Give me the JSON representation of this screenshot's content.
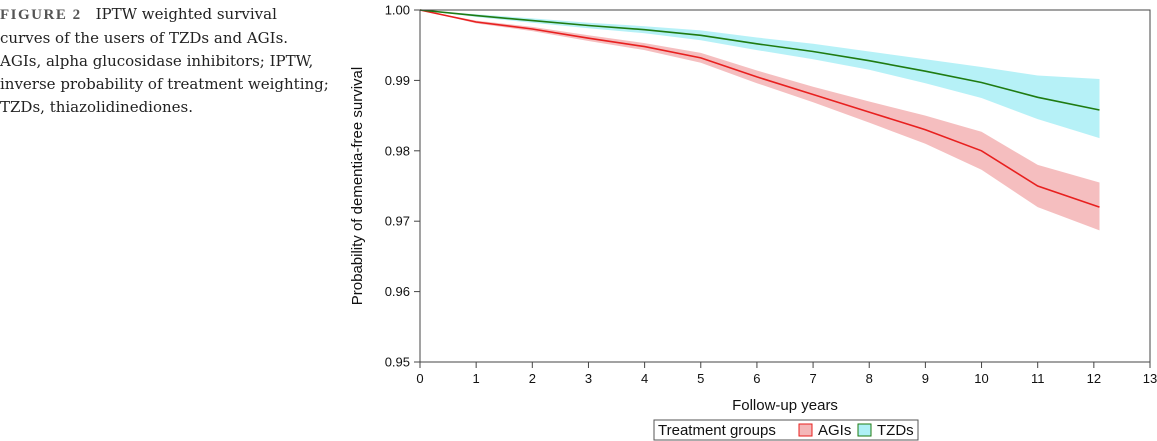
{
  "caption": {
    "label": "FIGURE 2",
    "text": "IPTW weighted survival curves of the users of TZDs and AGIs. AGIs, alpha glucosidase inhibitors; IPTW, inverse probability of treatment weighting; TZDs, thiazolidinediones."
  },
  "colors": {
    "agis_line": "#e8201f",
    "agis_band": "#f4b7b8",
    "tzds_line": "#1f7b12",
    "tzds_band": "#aef0f6"
  },
  "chart_data": {
    "type": "line",
    "xlabel": "Follow-up years",
    "ylabel": "Probability of dementia-free survival",
    "xlim": [
      0,
      13
    ],
    "ylim": [
      0.95,
      1.0
    ],
    "xticks": [
      0,
      1,
      2,
      3,
      4,
      5,
      6,
      7,
      8,
      9,
      10,
      11,
      12,
      13
    ],
    "yticks": [
      0.95,
      0.96,
      0.97,
      0.98,
      0.99,
      1.0
    ],
    "ytick_labels": [
      "0.95",
      "0.96",
      "0.97",
      "0.98",
      "0.99",
      "1.00"
    ],
    "legend": {
      "title": "Treatment groups",
      "placement": "bottom",
      "entries": [
        "AGIs",
        "TZDs"
      ]
    },
    "series": [
      {
        "name": "AGIs",
        "x": [
          0,
          1,
          2,
          3,
          4,
          5,
          6,
          7,
          8,
          9,
          10,
          11,
          12.1
        ],
        "values": [
          1.0,
          0.9983,
          0.9973,
          0.996,
          0.9948,
          0.9932,
          0.9905,
          0.988,
          0.9855,
          0.983,
          0.98,
          0.975,
          0.972
        ],
        "lower": [
          1.0,
          0.9981,
          0.997,
          0.9956,
          0.9943,
          0.9925,
          0.9896,
          0.9869,
          0.984,
          0.981,
          0.9773,
          0.972,
          0.9687
        ],
        "upper": [
          1.0,
          0.9985,
          0.9976,
          0.9964,
          0.9953,
          0.9939,
          0.9914,
          0.9891,
          0.987,
          0.985,
          0.9827,
          0.978,
          0.9755
        ]
      },
      {
        "name": "TZDs",
        "x": [
          0,
          1,
          2,
          3,
          4,
          5,
          6,
          7,
          8,
          9,
          10,
          11,
          12.1
        ],
        "values": [
          1.0,
          0.9992,
          0.9985,
          0.9978,
          0.9972,
          0.9964,
          0.9952,
          0.9941,
          0.9928,
          0.9913,
          0.9897,
          0.9876,
          0.9858
        ],
        "lower": [
          1.0,
          0.999,
          0.9982,
          0.9974,
          0.9967,
          0.9957,
          0.9943,
          0.993,
          0.9915,
          0.9896,
          0.9875,
          0.9845,
          0.9818
        ],
        "upper": [
          1.0,
          0.9994,
          0.9988,
          0.9982,
          0.9977,
          0.9971,
          0.9961,
          0.9952,
          0.9941,
          0.993,
          0.9919,
          0.9907,
          0.9902
        ]
      }
    ]
  }
}
